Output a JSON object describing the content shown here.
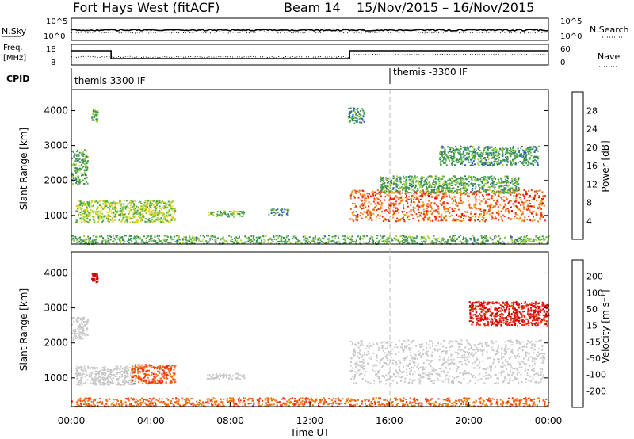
{
  "header": {
    "title": "Fort Hays West (fitACF)",
    "beam": "Beam 14",
    "dates": "15/Nov/2015 – 16/Nov/2015"
  },
  "status_panels": {
    "nsky_label": "N.Sky",
    "nsky_top": "10^5",
    "nsky_bottom": "10^0",
    "nsearch_label": "N.Search",
    "nsearch_top": "10^5",
    "nsearch_bottom": "10^0",
    "freq_label": "Freq.",
    "freq_unit": "[MHz]",
    "freq_top": "18",
    "freq_bottom": "8",
    "nave_label": "Nave",
    "nave_top": "60",
    "nave_bottom": "0",
    "cpid_label": "CPID",
    "cpid_left": "themis 3300 IF",
    "cpid_right": "themis -3300 IF"
  },
  "colors": {
    "power_scale": [
      "#1a2bff",
      "#2a5cb8",
      "#3a8a60",
      "#4aa84a",
      "#a8d23a",
      "#f0d020",
      "#f0a020",
      "#f07010",
      "#f03010",
      "#e00000"
    ],
    "velocity_scale": [
      "#d00000",
      "#f03010",
      "#f07010",
      "#f0a020",
      "#c8c8c8",
      "#c8c8c8",
      "#70c040",
      "#40a040",
      "#2060b0",
      "#1020a0"
    ],
    "ground_scatter": "#c8c8c8"
  },
  "chart_data": [
    {
      "type": "heatmap",
      "name": "power",
      "xlabel": "",
      "ylabel": "Slant Range [km]",
      "xlim": [
        "00:00",
        "24:00"
      ],
      "ylim": [
        180,
        4600
      ],
      "y_ticks": [
        1000,
        2000,
        3000,
        4000
      ],
      "colorbar": {
        "label": "Power [dB]",
        "ticks": [
          4,
          8,
          12,
          16,
          20,
          24,
          28
        ],
        "range": [
          0,
          32
        ]
      },
      "echo_regions": [
        {
          "t_start": 0.0,
          "t_end": 0.8,
          "r_min": 1900,
          "r_max": 2900,
          "power": 10
        },
        {
          "t_start": 1.0,
          "t_end": 1.3,
          "r_min": 3700,
          "r_max": 4050,
          "power": 10
        },
        {
          "t_start": 0.2,
          "t_end": 5.2,
          "r_min": 820,
          "r_max": 1450,
          "power": 14
        },
        {
          "t_start": 6.8,
          "t_end": 8.7,
          "r_min": 980,
          "r_max": 1150,
          "power": 12
        },
        {
          "t_start": 9.9,
          "t_end": 10.9,
          "r_min": 1000,
          "r_max": 1200,
          "power": 8
        },
        {
          "t_start": 0.0,
          "t_end": 24.0,
          "r_min": 200,
          "r_max": 450,
          "power": 10
        },
        {
          "t_start": 13.9,
          "t_end": 14.7,
          "r_min": 3650,
          "r_max": 4100,
          "power": 8
        },
        {
          "t_start": 14.0,
          "t_end": 23.8,
          "r_min": 850,
          "r_max": 1750,
          "power": 26
        },
        {
          "t_start": 15.5,
          "t_end": 22.5,
          "r_min": 1650,
          "r_max": 2150,
          "power": 10
        },
        {
          "t_start": 18.5,
          "t_end": 23.5,
          "r_min": 2450,
          "r_max": 3000,
          "power": 9
        }
      ]
    },
    {
      "type": "heatmap",
      "name": "velocity",
      "xlabel": "Time UT",
      "ylabel": "Slant Range [km]",
      "xlim": [
        "00:00",
        "24:00"
      ],
      "ylim": [
        180,
        4600
      ],
      "y_ticks": [
        1000,
        2000,
        3000,
        4000
      ],
      "x_ticks": [
        "00:00",
        "04:00",
        "08:00",
        "12:00",
        "16:00",
        "20:00",
        "00:00"
      ],
      "colorbar": {
        "label": "Velocity [m s⁻¹]",
        "ticks": [
          200,
          100,
          50,
          15,
          -15,
          -50,
          -100,
          -200
        ]
      },
      "echo_regions": [
        {
          "t_start": 0.0,
          "t_end": 0.8,
          "r_min": 2100,
          "r_max": 2750,
          "velocity": 0
        },
        {
          "t_start": 1.0,
          "t_end": 1.3,
          "r_min": 3750,
          "r_max": 4000,
          "velocity": -220
        },
        {
          "t_start": 0.2,
          "t_end": 3.2,
          "r_min": 820,
          "r_max": 1350,
          "velocity": 0
        },
        {
          "t_start": 3.0,
          "t_end": 5.2,
          "r_min": 850,
          "r_max": 1400,
          "velocity": -70
        },
        {
          "t_start": 6.8,
          "t_end": 8.7,
          "r_min": 980,
          "r_max": 1150,
          "velocity": 0
        },
        {
          "t_start": 0.0,
          "t_end": 24.0,
          "r_min": 200,
          "r_max": 450,
          "velocity": -60
        },
        {
          "t_start": 14.0,
          "t_end": 23.8,
          "r_min": 850,
          "r_max": 2100,
          "velocity": 0
        },
        {
          "t_start": 20.0,
          "t_end": 24.0,
          "r_min": 2500,
          "r_max": 3200,
          "velocity": -150
        }
      ]
    }
  ],
  "time_axis": {
    "label": "Time UT",
    "ticks": [
      "00:00",
      "04:00",
      "08:00",
      "12:00",
      "16:00",
      "20:00",
      "00:00"
    ]
  }
}
